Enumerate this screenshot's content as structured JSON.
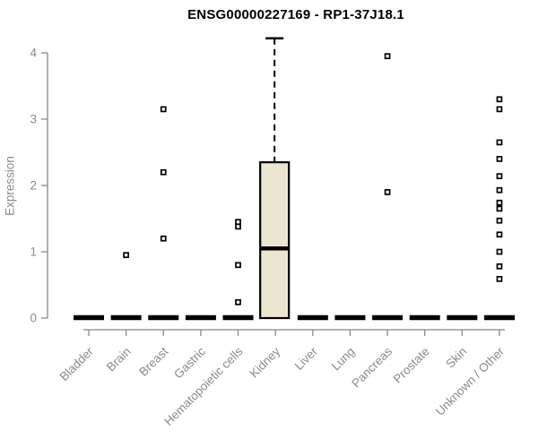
{
  "chart_data": {
    "type": "boxplot",
    "title": "ENSG00000227169 - RP1-37J18.1",
    "ylabel": "Expression",
    "ylim": [
      0,
      4.25
    ],
    "yticks": [
      0,
      1,
      2,
      3,
      4
    ],
    "grid": false,
    "legend": false,
    "categories": [
      "Bladder",
      "Brain",
      "Breast",
      "Gastric",
      "Hematopoietic cells",
      "Kidney",
      "Liver",
      "Lung",
      "Pancreas",
      "Prostate",
      "Skin",
      "Unknown / Other"
    ],
    "boxes": [
      {
        "category": "Bladder",
        "q1": 0,
        "median": 0,
        "q3": 0,
        "whisker_low": 0,
        "whisker_high": 0,
        "outliers": []
      },
      {
        "category": "Brain",
        "q1": 0,
        "median": 0,
        "q3": 0,
        "whisker_low": 0,
        "whisker_high": 0,
        "outliers": [
          0.95
        ]
      },
      {
        "category": "Breast",
        "q1": 0,
        "median": 0,
        "q3": 0,
        "whisker_low": 0,
        "whisker_high": 0,
        "outliers": [
          3.15,
          2.2,
          1.2
        ]
      },
      {
        "category": "Gastric",
        "q1": 0,
        "median": 0,
        "q3": 0,
        "whisker_low": 0,
        "whisker_high": 0,
        "outliers": []
      },
      {
        "category": "Hematopoietic cells",
        "q1": 0,
        "median": 0,
        "q3": 0,
        "whisker_low": 0,
        "whisker_high": 0,
        "outliers": [
          1.45,
          1.38,
          0.8,
          0.24
        ]
      },
      {
        "category": "Kidney",
        "q1": 0,
        "median": 1.05,
        "q3": 2.35,
        "whisker_low": 0,
        "whisker_high": 4.22,
        "outliers": []
      },
      {
        "category": "Liver",
        "q1": 0,
        "median": 0,
        "q3": 0,
        "whisker_low": 0,
        "whisker_high": 0,
        "outliers": []
      },
      {
        "category": "Lung",
        "q1": 0,
        "median": 0,
        "q3": 0,
        "whisker_low": 0,
        "whisker_high": 0,
        "outliers": []
      },
      {
        "category": "Pancreas",
        "q1": 0,
        "median": 0,
        "q3": 0,
        "whisker_low": 0,
        "whisker_high": 0,
        "outliers": [
          3.95,
          1.9
        ]
      },
      {
        "category": "Prostate",
        "q1": 0,
        "median": 0,
        "q3": 0,
        "whisker_low": 0,
        "whisker_high": 0,
        "outliers": []
      },
      {
        "category": "Skin",
        "q1": 0,
        "median": 0,
        "q3": 0,
        "whisker_low": 0,
        "whisker_high": 0,
        "outliers": []
      },
      {
        "category": "Unknown / Other",
        "q1": 0,
        "median": 0,
        "q3": 0,
        "whisker_low": 0,
        "whisker_high": 0,
        "outliers": [
          3.3,
          3.15,
          2.65,
          2.4,
          2.14,
          1.93,
          1.74,
          1.65,
          1.47,
          1.26,
          1.0,
          0.78,
          0.59
        ]
      }
    ],
    "colors": {
      "box_fill": "#ebe6cf",
      "box_border": "#000000",
      "median": "#000000",
      "whisker": "#000000",
      "outlier": "#000000",
      "axis": "#888888",
      "tick_label": "#8a8a8a",
      "title": "#000000"
    }
  }
}
